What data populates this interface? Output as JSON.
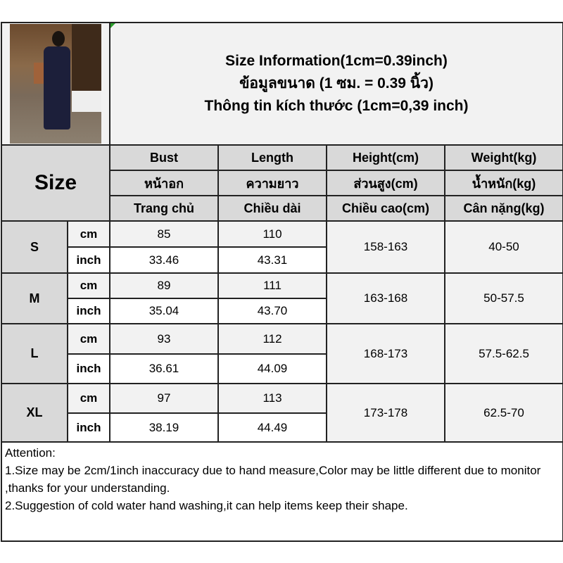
{
  "title_lines": [
    "Size Information(1cm=0.39inch)",
    "ข้อมูลขนาด (1 ซม. = 0.39 นิ้ว)",
    "Thông tin kích thước (1cm=0,39 inch)"
  ],
  "size_label": "Size",
  "columns": [
    {
      "en": "Bust",
      "th": "หน้าอก",
      "vi": "Trang chủ"
    },
    {
      "en": "Length",
      "th": "ความยาว",
      "vi": "Chiều dài"
    },
    {
      "en": "Height(cm)",
      "th": "ส่วนสูง(cm)",
      "vi": "Chiều cao(cm)"
    },
    {
      "en": "Weight(kg)",
      "th": "น้ำหนัก(kg)",
      "vi": "Cân nặng(kg)"
    }
  ],
  "units": {
    "cm": "cm",
    "inch": "inch"
  },
  "sizes": [
    {
      "size": "S",
      "cm": {
        "bust": "85",
        "length": "110"
      },
      "inch": {
        "bust": "33.46",
        "length": "43.31"
      },
      "height": "158-163",
      "weight": "40-50"
    },
    {
      "size": "M",
      "cm": {
        "bust": "89",
        "length": "111"
      },
      "inch": {
        "bust": "35.04",
        "length": "43.70"
      },
      "height": "163-168",
      "weight": "50-57.5"
    },
    {
      "size": "L",
      "cm": {
        "bust": "93",
        "length": "112"
      },
      "inch": {
        "bust": "36.61",
        "length": "44.09"
      },
      "height": "168-173",
      "weight": "57.5-62.5"
    },
    {
      "size": "XL",
      "cm": {
        "bust": "97",
        "length": "113"
      },
      "inch": {
        "bust": "38.19",
        "length": "44.49"
      },
      "height": "173-178",
      "weight": "62.5-70"
    }
  ],
  "attention": {
    "heading": "Attention:",
    "note1": "1.Size may be 2cm/1inch inaccuracy due to hand measure,Color may be little different due to monitor ,thanks for your understanding.",
    "note2": "2.Suggestion of cold water hand washing,it can help items keep their shape."
  }
}
